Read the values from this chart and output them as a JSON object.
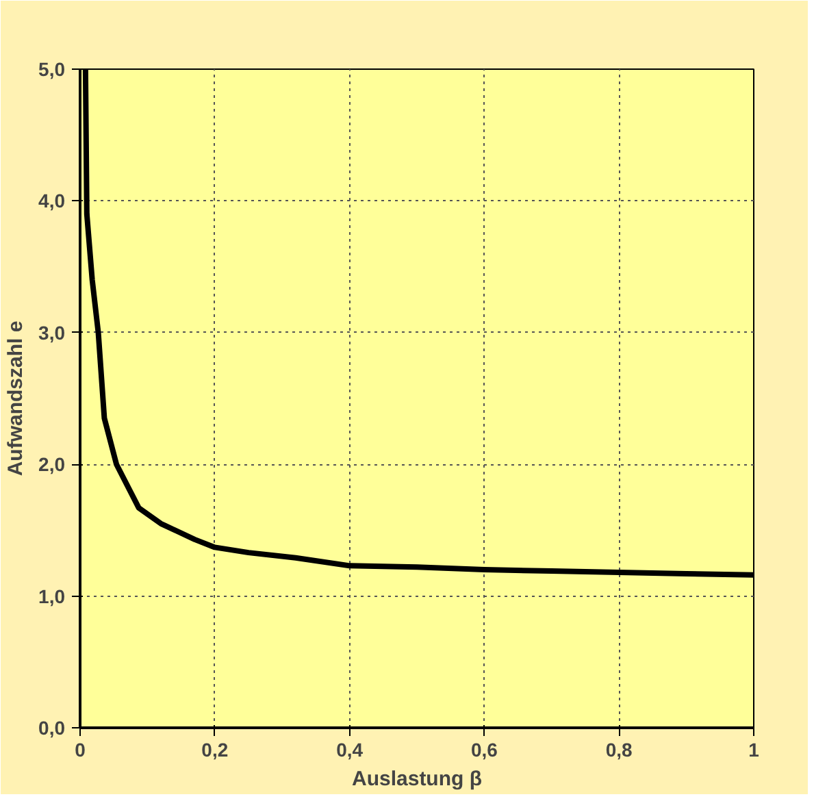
{
  "chart_data": {
    "type": "line",
    "xlabel": "Auslastung β",
    "ylabel": "Aufwandszahl e",
    "x": [
      0.008,
      0.01,
      0.018,
      0.027,
      0.036,
      0.054,
      0.087,
      0.12,
      0.17,
      0.2,
      0.25,
      0.32,
      0.4,
      0.5,
      0.6,
      0.7,
      0.8,
      0.9,
      1.0
    ],
    "series": [
      {
        "color": "#000000",
        "values": [
          5.0,
          3.9,
          3.4,
          3.0,
          2.35,
          2.0,
          1.67,
          1.55,
          1.43,
          1.37,
          1.33,
          1.29,
          1.23,
          1.22,
          1.2,
          1.19,
          1.18,
          1.17,
          1.16
        ]
      }
    ],
    "xlim": [
      0,
      1
    ],
    "ylim": [
      0,
      5
    ],
    "xticks": [
      0,
      {
        "value": 0.2,
        "label": "0,2"
      },
      {
        "value": 0.4,
        "label": "0,4"
      },
      {
        "value": 0.6,
        "label": "0,6"
      },
      {
        "value": 0.8,
        "label": "0,8"
      },
      1
    ],
    "yticks": [
      {
        "value": 0,
        "label": "0,0"
      },
      {
        "value": 1,
        "label": "1,0"
      },
      {
        "value": 2,
        "label": "2,0"
      },
      {
        "value": 3,
        "label": "3,0"
      },
      {
        "value": 4,
        "label": "4,0"
      },
      {
        "value": 5,
        "label": "5,0"
      }
    ],
    "grid": true,
    "marker": "none",
    "line_style": "solid"
  }
}
